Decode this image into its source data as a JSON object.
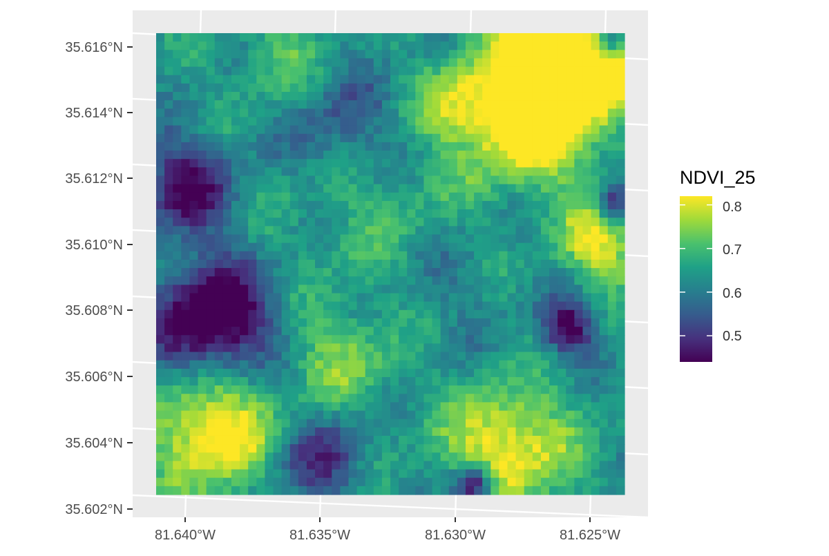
{
  "map": {
    "type": "raster",
    "y_ticks": [
      "35.616°N",
      "35.614°N",
      "35.612°N",
      "35.610°N",
      "35.608°N",
      "35.606°N",
      "35.604°N",
      "35.602°N"
    ],
    "x_ticks": [
      "81.640°W",
      "81.635°W",
      "81.630°W",
      "81.625°W"
    ],
    "raster": {
      "columns": 56,
      "rows": 55,
      "value_range": [
        0.44,
        0.82
      ]
    },
    "legend": {
      "title": "NDVI_25",
      "placement": "right",
      "ticks": [
        "0.8",
        "0.7",
        "0.6",
        "0.5"
      ],
      "tick_values": [
        0.8,
        0.7,
        0.6,
        0.5
      ],
      "colors": [
        "#440154",
        "#46327E",
        "#365C8D",
        "#277F8E",
        "#1FA187",
        "#4AC16D",
        "#9FDA3A",
        "#FDE725"
      ]
    },
    "colors": {
      "panel_background": "#EBEBEB",
      "graticule": "#FFFFFF",
      "tick_text": "#4D4D4D",
      "legend_title": "#000000"
    }
  }
}
